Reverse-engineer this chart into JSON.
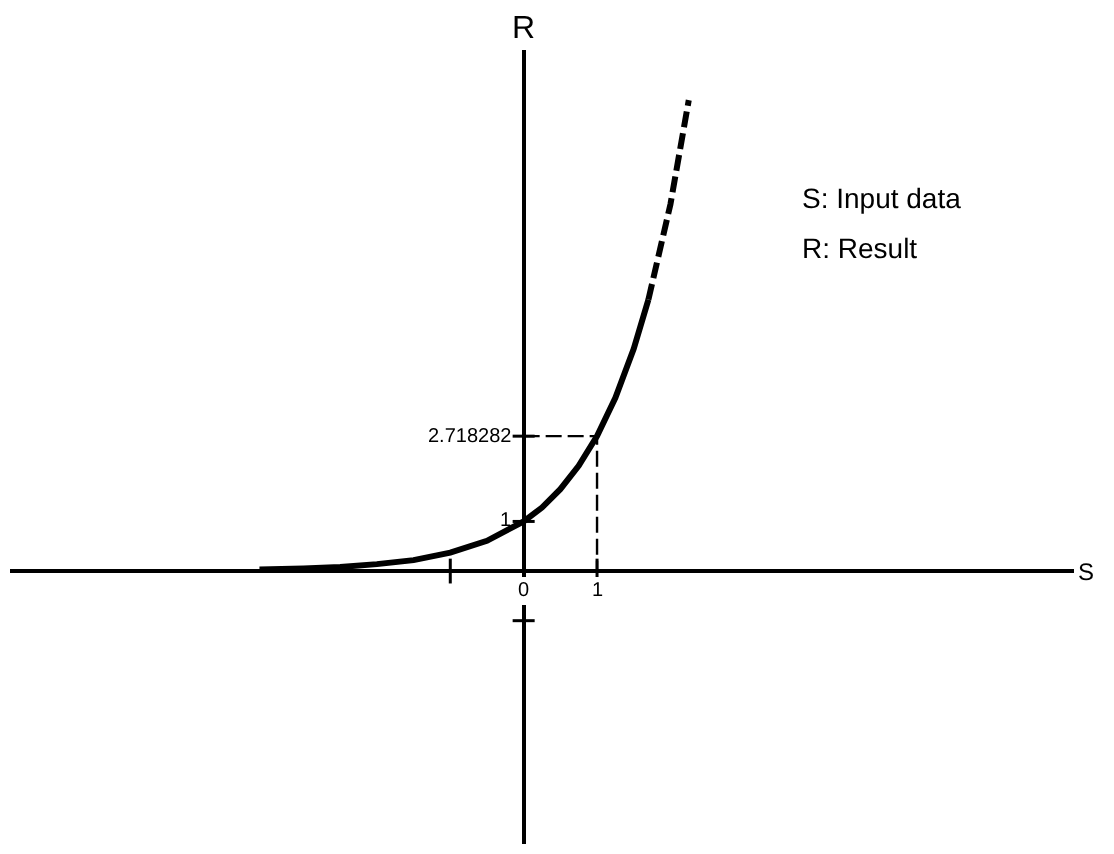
{
  "chart_data": {
    "type": "line",
    "xlabel": "S",
    "ylabel": "R",
    "xlim": [
      -7,
      7.5
    ],
    "ylim": [
      -5.5,
      10.5
    ],
    "xticks": [
      {
        "value": -1,
        "label": null
      },
      0,
      1
    ],
    "yticks": [
      {
        "value": -1,
        "label": null
      },
      1,
      2.718282
    ],
    "legend": false,
    "marker": "none",
    "annotations": [
      "S: Input data",
      "R: Result"
    ],
    "series": [
      {
        "color": "#000000",
        "line_style": "solid",
        "x": [
          -3.6,
          -3,
          -2.5,
          -2,
          -1.5,
          -1,
          -0.5,
          0,
          0.25,
          0.5,
          0.75,
          1,
          1.25,
          1.5,
          1.7
        ],
        "values": [
          0.03,
          0.05,
          0.08,
          0.14,
          0.22,
          0.37,
          0.61,
          1,
          1.28,
          1.65,
          2.12,
          2.718282,
          3.49,
          4.48,
          5.47
        ]
      },
      {
        "color": "#000000",
        "line_style": "dashed",
        "x": [
          1.7,
          2.0,
          2.25
        ],
        "values": [
          5.47,
          7.39,
          9.49
        ]
      },
      {
        "color": "#000000",
        "line_style": "dashed",
        "x": [
          0,
          1,
          1
        ],
        "values": [
          2.718282,
          2.718282,
          0
        ]
      }
    ]
  }
}
